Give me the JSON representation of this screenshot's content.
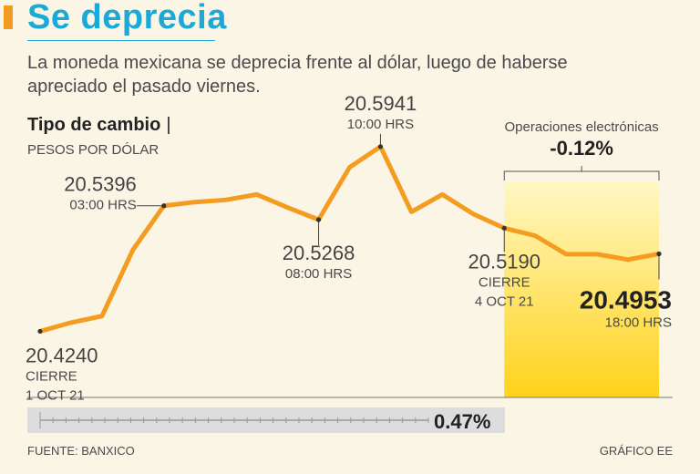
{
  "title": "Se deprecia",
  "subtitle": "La moneda mexicana se deprecia frente al dólar, luego de haberse apreciado el pasado viernes.",
  "chart_label": "Tipo de cambio",
  "chart_label_separator": "|",
  "chart_unit": "PESOS POR DÓLAR",
  "source": "FUENTE: BANXICO",
  "credit": "GRÁFICO EE",
  "colors": {
    "line": "#f39c1f",
    "title": "#1aa9d8",
    "highlight_top": "#fff8c4",
    "highlight_bottom": "#ffd21a"
  },
  "chart_data": {
    "type": "line",
    "title": "Tipo de cambio",
    "ylabel": "PESOS POR DÓLAR",
    "ylim": [
      20.4,
      20.62
    ],
    "x": [
      0,
      1,
      2,
      3,
      4,
      5,
      6,
      7,
      8,
      9,
      10,
      11,
      12,
      13,
      14,
      15,
      16,
      17,
      18,
      19,
      20
    ],
    "values": [
      20.424,
      20.432,
      20.438,
      20.499,
      20.5396,
      20.543,
      20.545,
      20.55,
      20.538,
      20.5268,
      20.575,
      20.5941,
      20.534,
      20.55,
      20.532,
      20.519,
      20.512,
      20.495,
      20.495,
      20.49,
      20.4953
    ],
    "annotations": [
      {
        "index": 0,
        "value": "20.4240",
        "lines": [
          "CIERRE",
          "1 OCT 21"
        ]
      },
      {
        "index": 4,
        "value": "20.5396",
        "lines": [
          "03:00 HRS"
        ]
      },
      {
        "index": 9,
        "value": "20.5268",
        "lines": [
          "08:00 HRS"
        ]
      },
      {
        "index": 11,
        "value": "20.5941",
        "lines": [
          "10:00 HRS"
        ]
      },
      {
        "index": 15,
        "value": "20.5190",
        "lines": [
          "CIERRE",
          "4 OCT 21"
        ]
      },
      {
        "index": 20,
        "value": "20.4953",
        "lines": [
          "18:00 HRS"
        ]
      }
    ],
    "highlight": {
      "from_index": 15,
      "to_index": 20,
      "label": "Operaciones electrónicas",
      "change": "-0.12%"
    },
    "total_change": "0.47%"
  }
}
